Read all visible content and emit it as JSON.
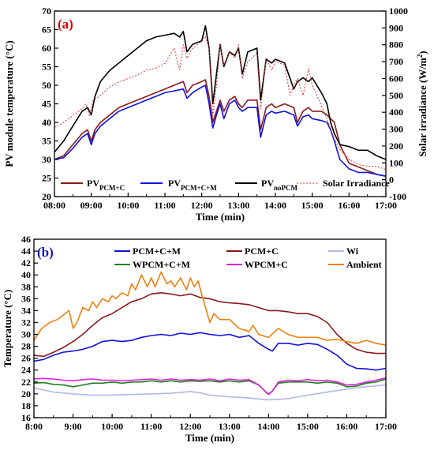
{
  "chart_data": [
    {
      "type": "line",
      "panel_label": "(a)",
      "xlabel": "Time (min)",
      "ylabel": "PV module temperature (°C)",
      "y2label": "Solar irradiance (W/m",
      "y2label_sup": "2",
      "y2label_end": ")",
      "x_ticks": [
        "08:00",
        "09:00",
        "10:00",
        "11:00",
        "12:00",
        "13:00",
        "14:00",
        "15:00",
        "16:00",
        "17:00"
      ],
      "xlim": [
        0,
        9
      ],
      "ylim": [
        20,
        70
      ],
      "y_ticks": [
        20,
        25,
        30,
        35,
        40,
        45,
        50,
        55,
        60,
        65,
        70
      ],
      "y2lim": [
        -100,
        1000
      ],
      "y2_ticks": [
        -100,
        0,
        100,
        200,
        300,
        400,
        500,
        600,
        700,
        800,
        900,
        1000
      ],
      "legend_position": "bottom",
      "series": [
        {
          "name": "PV",
          "name_sub": "PCM+C",
          "color": "#8B1A1A",
          "axis": "left",
          "x": [
            0,
            0.25,
            0.5,
            0.75,
            0.9,
            1.0,
            1.1,
            1.25,
            1.5,
            1.75,
            2.0,
            2.25,
            2.5,
            2.75,
            3.0,
            3.25,
            3.5,
            3.6,
            3.75,
            4.0,
            4.1,
            4.2,
            4.3,
            4.4,
            4.5,
            4.6,
            4.75,
            4.9,
            5.0,
            5.1,
            5.25,
            5.5,
            5.6,
            5.75,
            5.9,
            6.0,
            6.25,
            6.5,
            6.6,
            6.75,
            6.9,
            7.0,
            7.25,
            7.4,
            7.5,
            7.6,
            7.75,
            8.0,
            8.25,
            8.5,
            8.75,
            9.0
          ],
          "y": [
            30,
            31,
            34,
            37,
            38,
            35,
            38,
            40,
            42,
            44,
            45,
            46,
            47,
            48,
            49,
            50,
            51,
            48,
            50,
            51,
            51.5,
            47,
            40,
            43,
            46,
            43,
            46,
            47,
            45,
            44,
            46,
            46,
            38,
            44,
            45,
            44,
            45,
            44,
            40,
            43,
            44,
            43,
            43,
            42,
            41,
            40,
            34,
            29,
            28,
            27,
            26,
            25.5
          ]
        },
        {
          "name": "PV",
          "name_sub": "PCM+C+M",
          "color": "#1010E0",
          "axis": "left",
          "x": [
            0,
            0.25,
            0.5,
            0.75,
            0.9,
            1.0,
            1.1,
            1.25,
            1.5,
            1.75,
            2.0,
            2.25,
            2.5,
            2.75,
            3.0,
            3.25,
            3.5,
            3.6,
            3.75,
            4.0,
            4.1,
            4.2,
            4.3,
            4.4,
            4.5,
            4.6,
            4.75,
            4.9,
            5.0,
            5.1,
            5.25,
            5.5,
            5.6,
            5.75,
            5.9,
            6.0,
            6.25,
            6.5,
            6.6,
            6.75,
            6.9,
            7.0,
            7.25,
            7.4,
            7.5,
            7.6,
            7.75,
            8.0,
            8.25,
            8.5,
            8.75,
            9.0
          ],
          "y": [
            30,
            30.5,
            33,
            36,
            37,
            34,
            37,
            39,
            41,
            43,
            44,
            45,
            46,
            47,
            48,
            48.5,
            49,
            46.5,
            48,
            49.5,
            50,
            45,
            38.5,
            42,
            45,
            41,
            45,
            46,
            44,
            43,
            44,
            44,
            36,
            42,
            43,
            42.5,
            43,
            42,
            39,
            41.5,
            42,
            41,
            40.5,
            40,
            38,
            35,
            30,
            27.5,
            26.5,
            26.5,
            26,
            25.5
          ]
        },
        {
          "name": "PV",
          "name_sub": "noPCM",
          "color": "#000000",
          "axis": "left",
          "x": [
            0,
            0.25,
            0.5,
            0.75,
            0.9,
            1.0,
            1.1,
            1.25,
            1.5,
            1.75,
            2.0,
            2.25,
            2.5,
            2.75,
            3.0,
            3.25,
            3.4,
            3.5,
            3.6,
            3.75,
            4.0,
            4.1,
            4.2,
            4.3,
            4.4,
            4.5,
            4.6,
            4.75,
            4.9,
            5.0,
            5.1,
            5.25,
            5.5,
            5.6,
            5.75,
            5.9,
            6.0,
            6.25,
            6.5,
            6.6,
            6.75,
            6.9,
            7.0,
            7.25,
            7.4,
            7.5,
            7.6,
            7.75,
            8.0,
            8.25,
            8.5,
            8.75,
            9.0
          ],
          "y": [
            32,
            35,
            39,
            43,
            44,
            42,
            47,
            51,
            54,
            56,
            58,
            60,
            62,
            63,
            63.5,
            64,
            63,
            64.5,
            59,
            61,
            62,
            66,
            60,
            45,
            53,
            61,
            55,
            59,
            58,
            60,
            53,
            59,
            60,
            46,
            57,
            56,
            57,
            56,
            49,
            51,
            52,
            51,
            52,
            48,
            45,
            40,
            37,
            34,
            33.5,
            32.5,
            32.5,
            31,
            30
          ]
        },
        {
          "name": "Solar Irradiance",
          "color": "#E03030",
          "axis": "right",
          "dashed": true,
          "x": [
            0,
            0.25,
            0.5,
            0.75,
            0.85,
            0.95,
            1.05,
            1.25,
            1.5,
            1.75,
            2.0,
            2.25,
            2.5,
            2.75,
            3.0,
            3.25,
            3.4,
            3.5,
            3.6,
            3.75,
            4.0,
            4.1,
            4.2,
            4.3,
            4.4,
            4.5,
            4.6,
            4.75,
            4.9,
            5.0,
            5.1,
            5.25,
            5.5,
            5.6,
            5.75,
            5.9,
            6.0,
            6.25,
            6.4,
            6.5,
            6.6,
            6.75,
            6.9,
            7.0,
            7.25,
            7.4,
            7.5,
            7.6,
            7.75,
            8.0,
            8.25,
            8.5,
            8.75,
            9.0
          ],
          "y": [
            310,
            340,
            380,
            420,
            450,
            380,
            470,
            500,
            550,
            580,
            600,
            620,
            650,
            660,
            690,
            780,
            650,
            800,
            720,
            780,
            820,
            850,
            780,
            380,
            560,
            800,
            680,
            760,
            720,
            800,
            600,
            700,
            750,
            420,
            720,
            650,
            700,
            680,
            500,
            560,
            600,
            500,
            660,
            560,
            440,
            360,
            300,
            240,
            180,
            120,
            90,
            80,
            80,
            60
          ]
        }
      ]
    },
    {
      "type": "line",
      "panel_label": "(b)",
      "xlabel": "Time (min)",
      "ylabel": "Temperature (°C)",
      "x_ticks": [
        "8:00",
        "9:00",
        "10:00",
        "11:00",
        "12:00",
        "13:00",
        "14:00",
        "15:00",
        "16:00",
        "17:00"
      ],
      "xlim": [
        0,
        9
      ],
      "ylim": [
        16,
        46
      ],
      "y_ticks": [
        16,
        18,
        20,
        22,
        24,
        26,
        28,
        30,
        32,
        34,
        36,
        38,
        40,
        42,
        44,
        46
      ],
      "legend_position": "top",
      "series": [
        {
          "name": "PCM+C+M",
          "color": "#1010E0",
          "x": [
            0,
            0.25,
            0.5,
            0.75,
            1.0,
            1.25,
            1.5,
            1.75,
            2.0,
            2.25,
            2.5,
            2.75,
            3.0,
            3.25,
            3.5,
            3.75,
            4.0,
            4.25,
            4.5,
            4.75,
            5.0,
            5.25,
            5.5,
            5.75,
            6.0,
            6.1,
            6.25,
            6.5,
            6.75,
            7.0,
            7.25,
            7.5,
            7.75,
            8.0,
            8.25,
            8.5,
            8.75,
            9.0
          ],
          "y": [
            25.5,
            25.8,
            26.5,
            27,
            27.2,
            27.5,
            28,
            28.8,
            29,
            28.8,
            29,
            29.5,
            29.8,
            30,
            29.8,
            30.2,
            30,
            30.3,
            30,
            29.8,
            30,
            29.5,
            29.8,
            28.5,
            27.5,
            27.2,
            28.5,
            28.5,
            28.2,
            28.5,
            28.3,
            27.5,
            26.5,
            25,
            24.3,
            24.2,
            24,
            24.3
          ]
        },
        {
          "name": "PCM+C",
          "color": "#8B1A1A",
          "x": [
            0,
            0.25,
            0.5,
            0.75,
            1.0,
            1.25,
            1.5,
            1.75,
            2.0,
            2.25,
            2.5,
            2.75,
            3.0,
            3.25,
            3.5,
            3.75,
            4.0,
            4.25,
            4.5,
            4.75,
            5.0,
            5.25,
            5.5,
            5.75,
            6.0,
            6.25,
            6.5,
            6.75,
            7.0,
            7.25,
            7.5,
            7.75,
            8.0,
            8.25,
            8.5,
            8.75,
            9.0
          ],
          "y": [
            26.5,
            26.3,
            27,
            27.8,
            28.8,
            30,
            31.5,
            32.8,
            33.5,
            34.5,
            35.5,
            36,
            36.8,
            37,
            36.8,
            36.5,
            36.8,
            36.2,
            36,
            35.5,
            35.3,
            35.2,
            35,
            34.5,
            34,
            34,
            33.8,
            33.5,
            33.5,
            33,
            32,
            30,
            28.5,
            27.5,
            27,
            26.8,
            26.8
          ]
        },
        {
          "name": "Wi",
          "color": "#B0B8E8",
          "x": [
            0,
            0.5,
            1.0,
            1.5,
            2.0,
            2.5,
            3.0,
            3.5,
            4.0,
            4.25,
            4.5,
            5.0,
            5.5,
            6.0,
            6.5,
            7.0,
            7.5,
            8.0,
            8.5,
            9.0
          ],
          "y": [
            21,
            20.3,
            20,
            19.8,
            19.8,
            19.9,
            20,
            20.1,
            20.4,
            20.2,
            19.8,
            19.5,
            19.3,
            19,
            19.2,
            19.8,
            20.3,
            20.8,
            21.2,
            21.5
          ]
        },
        {
          "name": "WPCM+C+M",
          "color": "#208020",
          "x": [
            0,
            0.25,
            0.5,
            0.75,
            1.0,
            1.25,
            1.5,
            1.75,
            2.0,
            2.25,
            2.5,
            2.75,
            3.0,
            3.25,
            3.5,
            3.75,
            4.0,
            4.25,
            4.5,
            4.75,
            5.0,
            5.25,
            5.5,
            5.75,
            5.9,
            6.0,
            6.1,
            6.25,
            6.5,
            6.75,
            7.0,
            7.25,
            7.5,
            7.75,
            8.0,
            8.25,
            8.5,
            8.75,
            9.0
          ],
          "y": [
            21.8,
            21.9,
            21.6,
            21.5,
            21.2,
            21.5,
            21.8,
            21.8,
            22,
            21.8,
            22,
            22,
            22.2,
            22,
            22.2,
            22,
            22.2,
            22.1,
            22.2,
            22,
            22.2,
            22,
            22.2,
            21.5,
            20.5,
            20,
            20.5,
            21.8,
            22,
            22,
            22,
            21.8,
            22,
            21.8,
            21.2,
            21.3,
            21.8,
            22,
            22.5
          ]
        },
        {
          "name": "WPCM+C",
          "color": "#E020E0",
          "x": [
            0,
            0.25,
            0.5,
            0.75,
            1.0,
            1.25,
            1.5,
            1.75,
            2.0,
            2.25,
            2.5,
            2.75,
            3.0,
            3.25,
            3.5,
            3.75,
            4.0,
            4.25,
            4.5,
            4.75,
            5.0,
            5.25,
            5.5,
            5.75,
            5.9,
            6.0,
            6.1,
            6.25,
            6.5,
            6.75,
            7.0,
            7.25,
            7.5,
            7.75,
            8.0,
            8.25,
            8.5,
            8.75,
            9.0
          ],
          "y": [
            22.5,
            22.6,
            22.5,
            22.3,
            22.2,
            22.4,
            22.5,
            22.3,
            22.3,
            22.2,
            22.3,
            22.4,
            22.5,
            22.3,
            22.5,
            22.3,
            22.4,
            22.3,
            22.5,
            22.2,
            22.5,
            22.3,
            22.4,
            21.5,
            20.5,
            19.9,
            20.5,
            22,
            22.3,
            22.2,
            22.4,
            22.2,
            22.3,
            22,
            21.5,
            21.6,
            22,
            22.3,
            22.7
          ]
        },
        {
          "name": "Ambient",
          "color": "#F08010",
          "x": [
            0,
            0.2,
            0.4,
            0.6,
            0.8,
            0.9,
            1.0,
            1.1,
            1.25,
            1.4,
            1.5,
            1.6,
            1.75,
            1.9,
            2.0,
            2.1,
            2.25,
            2.4,
            2.5,
            2.6,
            2.75,
            2.9,
            3.0,
            3.1,
            3.25,
            3.4,
            3.5,
            3.6,
            3.75,
            3.9,
            4.0,
            4.1,
            4.2,
            4.3,
            4.5,
            4.6,
            4.75,
            5.0,
            5.25,
            5.5,
            5.6,
            5.75,
            6.0,
            6.25,
            6.5,
            6.75,
            7.0,
            7.25,
            7.5,
            7.75,
            8.0,
            8.25,
            8.5,
            8.75,
            9.0
          ],
          "y": [
            29,
            31,
            32,
            32.5,
            33.5,
            34,
            31,
            32,
            34.5,
            34,
            35.5,
            34.5,
            36,
            35.5,
            36.5,
            36,
            37,
            36.5,
            38.5,
            37.5,
            40,
            38,
            39.5,
            38,
            40.5,
            38.5,
            39,
            38,
            39.5,
            37.5,
            39.5,
            38,
            39,
            36.5,
            32,
            33.5,
            32.5,
            32.5,
            31,
            30.5,
            31.5,
            30,
            29.5,
            31,
            30,
            29.5,
            29.5,
            29.5,
            29,
            29.2,
            28.8,
            28.5,
            29,
            28.5,
            28.2
          ]
        }
      ]
    }
  ]
}
